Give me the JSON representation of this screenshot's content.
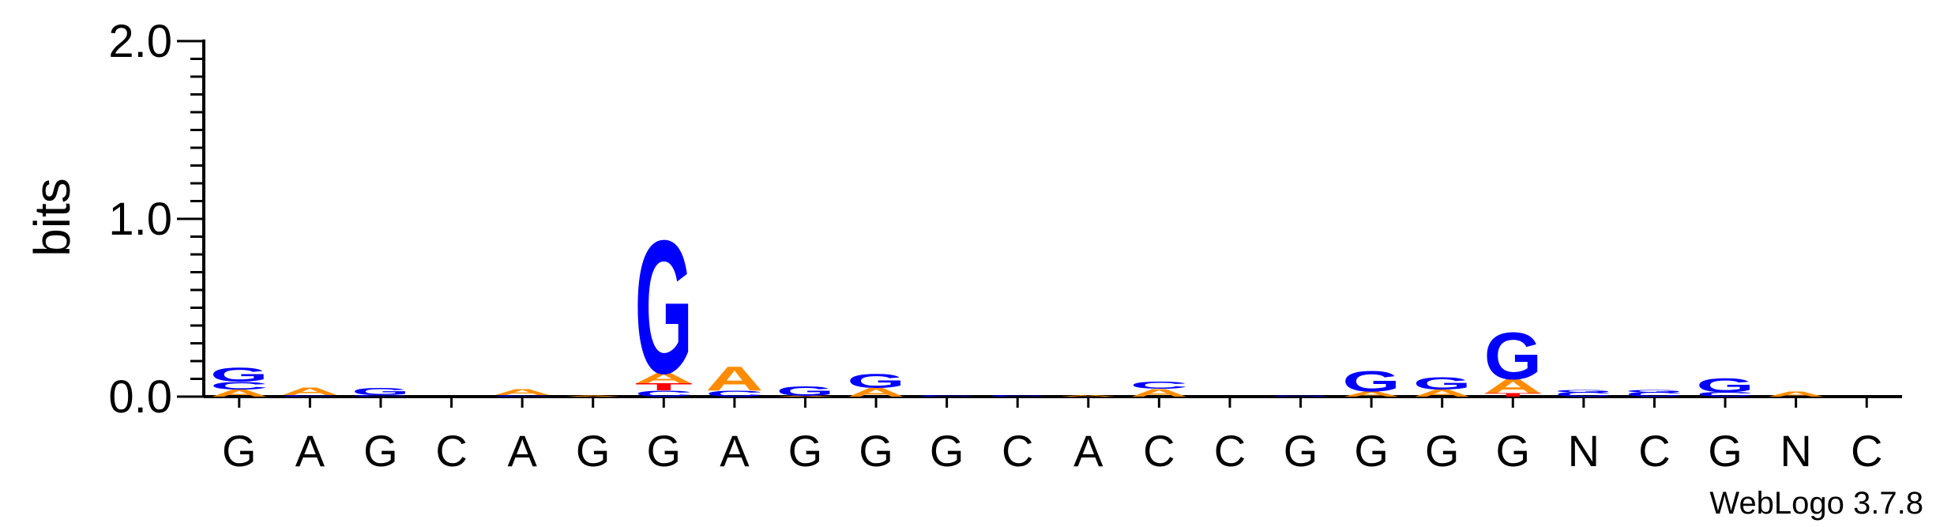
{
  "chart_data": {
    "type": "sequence-logo",
    "ylabel": "bits",
    "ylim": [
      0,
      2.0
    ],
    "yticks": [
      "0.0",
      "1.0",
      "2.0"
    ],
    "ytick_values": [
      0,
      1,
      2
    ],
    "minor_tick_step": 0.1,
    "positions": [
      "G",
      "A",
      "G",
      "C",
      "A",
      "G",
      "G",
      "A",
      "G",
      "G",
      "G",
      "C",
      "A",
      "C",
      "C",
      "G",
      "G",
      "G",
      "G",
      "N",
      "C",
      "G",
      "N",
      "C"
    ],
    "stacks": [
      [
        {
          "l": "A",
          "h": 0.04
        },
        {
          "l": "C",
          "h": 0.045
        },
        {
          "l": "G",
          "h": 0.08
        }
      ],
      [
        {
          "l": "C",
          "h": 0.01
        },
        {
          "l": "A",
          "h": 0.045
        }
      ],
      [
        {
          "l": "C",
          "h": 0.01
        },
        {
          "l": "G",
          "h": 0.04
        }
      ],
      [],
      [
        {
          "l": "C",
          "h": 0.01
        },
        {
          "l": "A",
          "h": 0.035
        }
      ],
      [
        {
          "l": "A",
          "h": 0.005
        }
      ],
      [
        {
          "l": "C",
          "h": 0.035
        },
        {
          "l": "T",
          "h": 0.04
        },
        {
          "l": "A",
          "h": 0.06
        },
        {
          "l": "G",
          "h": 0.77
        }
      ],
      [
        {
          "l": "C",
          "h": 0.035
        },
        {
          "l": "A",
          "h": 0.14
        }
      ],
      [
        {
          "l": "A",
          "h": 0.005
        },
        {
          "l": "G",
          "h": 0.055
        }
      ],
      [
        {
          "l": "A",
          "h": 0.05
        },
        {
          "l": "G",
          "h": 0.08
        }
      ],
      [
        {
          "l": "C",
          "h": 0.01
        }
      ],
      [
        {
          "l": "C",
          "h": 0.01
        }
      ],
      [
        {
          "l": "A",
          "h": 0.01
        }
      ],
      [
        {
          "l": "A",
          "h": 0.045
        },
        {
          "l": "C",
          "h": 0.04
        }
      ],
      [],
      [
        {
          "l": "G",
          "h": 0.005
        }
      ],
      [
        {
          "l": "A",
          "h": 0.03
        },
        {
          "l": "G",
          "h": 0.12
        }
      ],
      [
        {
          "l": "A",
          "h": 0.04
        },
        {
          "l": "G",
          "h": 0.07
        }
      ],
      [
        {
          "l": "T",
          "h": 0.02
        },
        {
          "l": "A",
          "h": 0.08
        },
        {
          "l": "G",
          "h": 0.27
        }
      ],
      [
        {
          "l": "C",
          "h": 0.025
        },
        {
          "l": "G",
          "h": 0.015
        }
      ],
      [
        {
          "l": "C",
          "h": 0.025
        },
        {
          "l": "G",
          "h": 0.015
        }
      ],
      [
        {
          "l": "C",
          "h": 0.025
        },
        {
          "l": "G",
          "h": 0.08
        }
      ],
      [
        {
          "l": "A",
          "h": 0.03
        }
      ],
      []
    ],
    "colors": {
      "A": "#ff8c00",
      "C": "#0000ff",
      "G": "#0000ff",
      "T": "#ff0000",
      "axis": "#000000"
    },
    "credit": "WebLogo 3.7.8"
  }
}
